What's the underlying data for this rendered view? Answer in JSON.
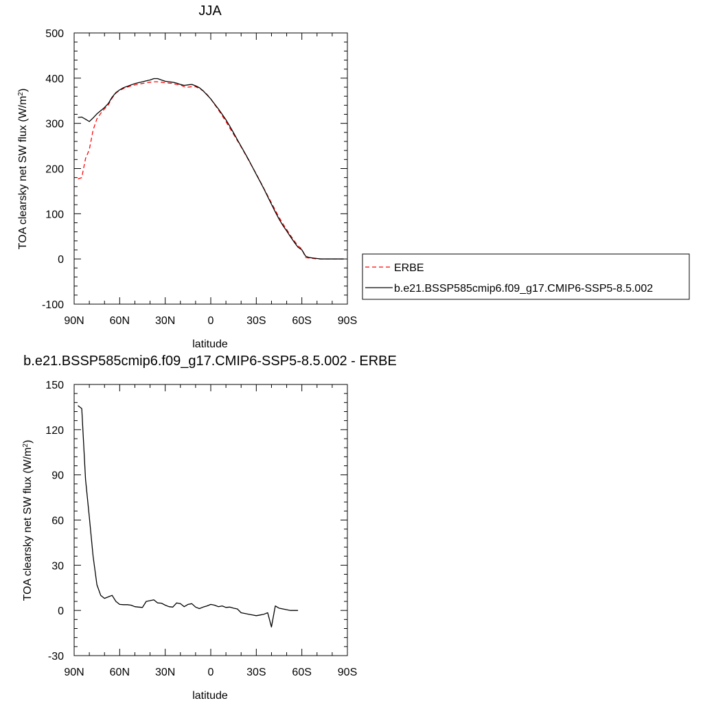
{
  "chart_data": [
    {
      "type": "line",
      "title": "JJA",
      "xlabel": "latitude",
      "ylabel": "TOA clearsky net SW flux (W/m",
      "ylabel_sup": "2",
      "ylabel_close": ")",
      "xlim": [
        90,
        -90
      ],
      "ylim": [
        -100,
        500
      ],
      "x_ticks": [
        90,
        60,
        30,
        0,
        -30,
        -60,
        -90
      ],
      "x_tick_labels": [
        "90N",
        "60N",
        "30N",
        "0",
        "30S",
        "60S",
        "90S"
      ],
      "y_ticks": [
        -100,
        0,
        100,
        200,
        300,
        400,
        500
      ],
      "y_tick_labels": [
        "-100",
        "0",
        "100",
        "200",
        "300",
        "400",
        "500"
      ],
      "grid": false,
      "legend_position": "right",
      "series": [
        {
          "name": "ERBE",
          "color": "#ff0000",
          "dash": "dashed",
          "points": [
            [
              87.5,
              177
            ],
            [
              85,
              180
            ],
            [
              82.5,
              222
            ],
            [
              80,
              242
            ],
            [
              77.5,
              285
            ],
            [
              75,
              310
            ],
            [
              72.5,
              322
            ],
            [
              70,
              332
            ],
            [
              67.5,
              341
            ],
            [
              65,
              356
            ],
            [
              62.5,
              367
            ],
            [
              60,
              373
            ],
            [
              57.5,
              377
            ],
            [
              55,
              380
            ],
            [
              52.5,
              383
            ],
            [
              50,
              385
            ],
            [
              47.5,
              387
            ],
            [
              45,
              388
            ],
            [
              42.5,
              390
            ],
            [
              40,
              391
            ],
            [
              37.5,
              392
            ],
            [
              35,
              392
            ],
            [
              32.5,
              391
            ],
            [
              30,
              390
            ],
            [
              27.5,
              389
            ],
            [
              25,
              388
            ],
            [
              22.5,
              386
            ],
            [
              20,
              385
            ],
            [
              17.5,
              381
            ],
            [
              15,
              380
            ],
            [
              12.5,
              381
            ],
            [
              10,
              381
            ],
            [
              7.5,
              377
            ],
            [
              5,
              372
            ],
            [
              2.5,
              364
            ],
            [
              0,
              354
            ],
            [
              -2.5,
              342
            ],
            [
              -5,
              330
            ],
            [
              -7.5,
              317
            ],
            [
              -10,
              304
            ],
            [
              -12.5,
              290
            ],
            [
              -15,
              276
            ],
            [
              -17.5,
              262
            ],
            [
              -20,
              248
            ],
            [
              -22.5,
              233
            ],
            [
              -25,
              218
            ],
            [
              -27.5,
              203
            ],
            [
              -30,
              188
            ],
            [
              -32.5,
              172
            ],
            [
              -35,
              156
            ],
            [
              -37.5,
              140
            ],
            [
              -40,
              124
            ],
            [
              -42.5,
              108
            ],
            [
              -45,
              92
            ],
            [
              -47.5,
              78
            ],
            [
              -50,
              65
            ],
            [
              -52.5,
              52
            ],
            [
              -55,
              40
            ],
            [
              -57.5,
              29
            ],
            [
              -60,
              22
            ],
            [
              -62.5,
              3
            ],
            [
              -65,
              2
            ],
            [
              -67.5,
              1
            ],
            [
              -70,
              0
            ],
            [
              -72.5,
              0
            ],
            [
              -75,
              0
            ],
            [
              -77.5,
              0
            ],
            [
              -80,
              0
            ],
            [
              -82.5,
              0
            ],
            [
              -85,
              0
            ],
            [
              -87.5,
              0
            ]
          ]
        },
        {
          "name": "b.e21.BSSP585cmip6.f09_g17.CMIP6-SSP5-8.5.002",
          "color": "#000000",
          "dash": "solid",
          "points": [
            [
              87.5,
              313
            ],
            [
              85,
              314
            ],
            [
              82.5,
              309
            ],
            [
              80,
              304
            ],
            [
              77.5,
              312
            ],
            [
              75,
              321
            ],
            [
              72.5,
              328
            ],
            [
              70,
              335
            ],
            [
              67.5,
              344
            ],
            [
              65,
              358
            ],
            [
              62.5,
              368
            ],
            [
              60,
              374
            ],
            [
              57.5,
              379
            ],
            [
              55,
              382
            ],
            [
              52.5,
              385
            ],
            [
              50,
              388
            ],
            [
              47.5,
              390
            ],
            [
              45,
              392
            ],
            [
              42.5,
              394
            ],
            [
              40,
              396
            ],
            [
              37.5,
              399
            ],
            [
              35,
              399
            ],
            [
              32.5,
              396
            ],
            [
              30,
              393
            ],
            [
              27.5,
              392
            ],
            [
              25,
              391
            ],
            [
              22.5,
              389
            ],
            [
              20,
              386
            ],
            [
              17.5,
              384
            ],
            [
              15,
              385
            ],
            [
              12.5,
              386
            ],
            [
              10,
              383
            ],
            [
              7.5,
              379
            ],
            [
              5,
              372
            ],
            [
              2.5,
              363
            ],
            [
              0,
              354
            ],
            [
              -2.5,
              343
            ],
            [
              -5,
              332
            ],
            [
              -7.5,
              320
            ],
            [
              -10,
              308
            ],
            [
              -12.5,
              294
            ],
            [
              -15,
              279
            ],
            [
              -17.5,
              264
            ],
            [
              -20,
              249
            ],
            [
              -22.5,
              234
            ],
            [
              -25,
              219
            ],
            [
              -27.5,
              203
            ],
            [
              -30,
              187
            ],
            [
              -32.5,
              171
            ],
            [
              -35,
              155
            ],
            [
              -37.5,
              138
            ],
            [
              -40,
              121
            ],
            [
              -42.5,
              104
            ],
            [
              -45,
              88
            ],
            [
              -47.5,
              74
            ],
            [
              -50,
              62
            ],
            [
              -52.5,
              49
            ],
            [
              -55,
              37
            ],
            [
              -57.5,
              26
            ],
            [
              -60,
              20
            ],
            [
              -62.5,
              6
            ],
            [
              -65,
              3
            ],
            [
              -67.5,
              2
            ],
            [
              -70,
              1
            ],
            [
              -72.5,
              0
            ],
            [
              -75,
              0
            ],
            [
              -77.5,
              0
            ],
            [
              -80,
              0
            ],
            [
              -82.5,
              0
            ],
            [
              -85,
              0
            ],
            [
              -87.5,
              0
            ]
          ]
        }
      ]
    },
    {
      "type": "line",
      "title": "b.e21.BSSP585cmip6.f09_g17.CMIP6-SSP5-8.5.002 - ERBE",
      "xlabel": "latitude",
      "ylabel": "TOA clearsky net SW flux (W/m",
      "ylabel_sup": "2",
      "ylabel_close": ")",
      "xlim": [
        90,
        -90
      ],
      "ylim": [
        -30,
        150
      ],
      "x_ticks": [
        90,
        60,
        30,
        0,
        -30,
        -60,
        -90
      ],
      "x_tick_labels": [
        "90N",
        "60N",
        "30N",
        "0",
        "30S",
        "60S",
        "90S"
      ],
      "y_ticks": [
        -30,
        0,
        30,
        60,
        90,
        120,
        150
      ],
      "y_tick_labels": [
        "-30",
        "0",
        "30",
        "60",
        "90",
        "120",
        "150"
      ],
      "grid": false,
      "series": [
        {
          "color": "#000000",
          "dash": "solid",
          "points": [
            [
              87.5,
              136
            ],
            [
              85,
              134
            ],
            [
              82.5,
              87
            ],
            [
              80,
              62
            ],
            [
              77.5,
              36
            ],
            [
              75,
              17
            ],
            [
              72.5,
              10
            ],
            [
              70,
              8
            ],
            [
              67.5,
              9
            ],
            [
              65,
              10
            ],
            [
              62.5,
              6
            ],
            [
              60,
              4
            ],
            [
              57.5,
              3.8
            ],
            [
              55,
              3.8
            ],
            [
              52.5,
              3.5
            ],
            [
              50,
              2.5
            ],
            [
              47.5,
              2.2
            ],
            [
              45,
              2
            ],
            [
              42.5,
              6
            ],
            [
              40,
              6.5
            ],
            [
              37.5,
              7
            ],
            [
              35,
              5
            ],
            [
              32.5,
              4.8
            ],
            [
              30,
              3.5
            ],
            [
              27.5,
              2.5
            ],
            [
              25,
              2.2
            ],
            [
              22.5,
              5
            ],
            [
              20,
              4.5
            ],
            [
              17.5,
              2.5
            ],
            [
              15,
              4
            ],
            [
              12.5,
              4.5
            ],
            [
              10,
              2.2
            ],
            [
              7.5,
              1.2
            ],
            [
              5,
              2.2
            ],
            [
              2.5,
              3
            ],
            [
              0,
              4
            ],
            [
              -2.5,
              3.5
            ],
            [
              -5,
              2.5
            ],
            [
              -7.5,
              3
            ],
            [
              -10,
              2
            ],
            [
              -12.5,
              2.2
            ],
            [
              -15,
              1.5
            ],
            [
              -17.5,
              1
            ],
            [
              -20,
              -1.5
            ],
            [
              -22.5,
              -2
            ],
            [
              -25,
              -2.5
            ],
            [
              -27.5,
              -3
            ],
            [
              -30,
              -3.5
            ],
            [
              -32.5,
              -3
            ],
            [
              -35,
              -2.5
            ],
            [
              -37.5,
              -1.5
            ],
            [
              -40,
              -11
            ],
            [
              -42.5,
              3
            ],
            [
              -45,
              1.5
            ],
            [
              -47.5,
              1
            ],
            [
              -50,
              0.5
            ],
            [
              -52.5,
              0
            ],
            [
              -55,
              0
            ],
            [
              -57.5,
              0
            ]
          ]
        }
      ]
    }
  ]
}
